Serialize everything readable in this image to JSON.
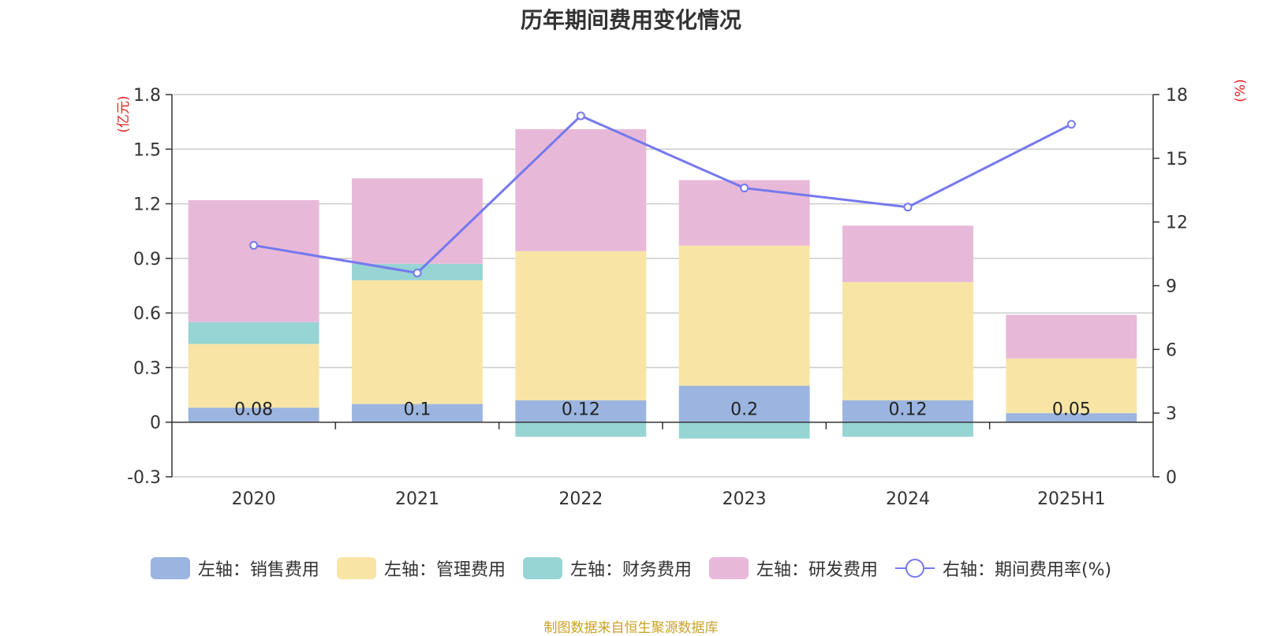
{
  "chart_data": {
    "type": "bar",
    "title": "历年期间费用变化情况",
    "categories": [
      "2020",
      "2021",
      "2022",
      "2023",
      "2024",
      "2025H1"
    ],
    "left_axis_unit": "(亿元)",
    "right_axis_unit": "(%)",
    "left_ylim": [
      -0.3,
      1.8
    ],
    "left_ticks": [
      "-0.3",
      "0",
      "0.3",
      "0.6",
      "0.9",
      "1.2",
      "1.5",
      "1.8"
    ],
    "right_ylim": [
      0,
      18
    ],
    "right_ticks": [
      "0",
      "3",
      "6",
      "9",
      "12",
      "15",
      "18"
    ],
    "series": [
      {
        "name": "左轴：销售费用",
        "type": "bar",
        "axis": "left",
        "color": "#9bb5e0",
        "values": [
          0.08,
          0.1,
          0.12,
          0.2,
          0.12,
          0.05
        ],
        "labels": [
          "0.08",
          "0.1",
          "0.12",
          "0.2",
          "0.12",
          "0.05"
        ]
      },
      {
        "name": "左轴：管理费用",
        "type": "bar",
        "axis": "left",
        "color": "#f8e5a6",
        "values": [
          0.35,
          0.68,
          0.82,
          0.77,
          0.65,
          0.3
        ]
      },
      {
        "name": "左轴：财务费用",
        "type": "bar",
        "axis": "left",
        "color": "#97d4d4",
        "values": [
          0.12,
          0.09,
          -0.08,
          -0.09,
          -0.08,
          0.0
        ]
      },
      {
        "name": "左轴：研发费用",
        "type": "bar",
        "axis": "left",
        "color": "#e8b8d9",
        "values": [
          0.67,
          0.47,
          0.67,
          0.36,
          0.31,
          0.24
        ]
      },
      {
        "name": "右轴：期间费用率(%)",
        "type": "line",
        "axis": "right",
        "color": "#7479ec",
        "values": [
          10.9,
          9.6,
          17.0,
          13.6,
          12.7,
          16.6
        ]
      }
    ]
  },
  "footer": "制图数据来自恒生聚源数据库"
}
